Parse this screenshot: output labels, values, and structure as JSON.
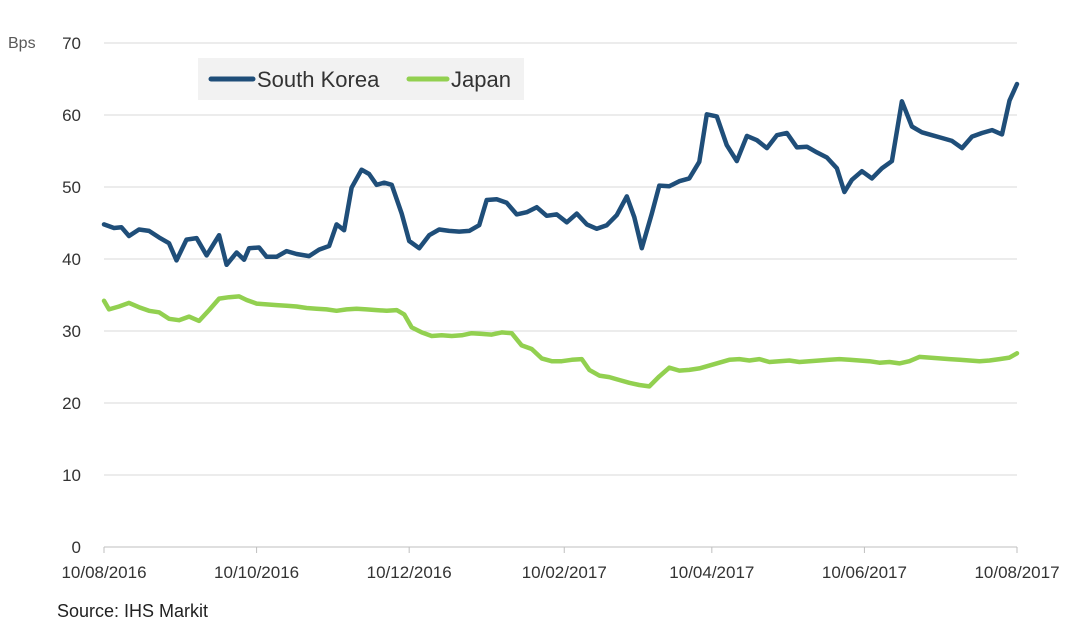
{
  "chart_data": {
    "type": "line",
    "ylabel": "Bps",
    "ylim": [
      0,
      70
    ],
    "yticks": [
      0,
      10,
      20,
      30,
      40,
      50,
      60,
      70
    ],
    "xlim": [
      "2016-08-10",
      "2017-08-10"
    ],
    "xticks": [
      "10/08/2016",
      "10/10/2016",
      "10/12/2016",
      "10/02/2017",
      "10/04/2017",
      "10/06/2017",
      "10/08/2017"
    ],
    "grid": "horizontal",
    "legend_position": "top-left",
    "series": [
      {
        "name": "South Korea",
        "color": "#1f4e79",
        "points": [
          [
            "2016-08-10",
            44.8
          ],
          [
            "2016-08-14",
            44.3
          ],
          [
            "2016-08-17",
            44.4
          ],
          [
            "2016-08-20",
            43.2
          ],
          [
            "2016-08-24",
            44.1
          ],
          [
            "2016-08-28",
            43.9
          ],
          [
            "2016-09-01",
            43.0
          ],
          [
            "2016-09-05",
            42.2
          ],
          [
            "2016-09-08",
            39.8
          ],
          [
            "2016-09-12",
            42.7
          ],
          [
            "2016-09-16",
            42.9
          ],
          [
            "2016-09-20",
            40.5
          ],
          [
            "2016-09-25",
            43.3
          ],
          [
            "2016-09-28",
            39.2
          ],
          [
            "2016-10-02",
            40.9
          ],
          [
            "2016-10-05",
            39.9
          ],
          [
            "2016-10-07",
            41.5
          ],
          [
            "2016-10-11",
            41.6
          ],
          [
            "2016-10-14",
            40.3
          ],
          [
            "2016-10-18",
            40.3
          ],
          [
            "2016-10-22",
            41.1
          ],
          [
            "2016-10-26",
            40.7
          ],
          [
            "2016-10-31",
            40.4
          ],
          [
            "2016-11-04",
            41.3
          ],
          [
            "2016-11-08",
            41.8
          ],
          [
            "2016-11-11",
            44.8
          ],
          [
            "2016-11-14",
            44.0
          ],
          [
            "2016-11-17",
            49.9
          ],
          [
            "2016-11-21",
            52.4
          ],
          [
            "2016-11-24",
            51.8
          ],
          [
            "2016-11-27",
            50.3
          ],
          [
            "2016-11-30",
            50.6
          ],
          [
            "2016-12-03",
            50.3
          ],
          [
            "2016-12-07",
            46.3
          ],
          [
            "2016-12-10",
            42.5
          ],
          [
            "2016-12-14",
            41.5
          ],
          [
            "2016-12-18",
            43.3
          ],
          [
            "2016-12-22",
            44.1
          ],
          [
            "2016-12-26",
            43.9
          ],
          [
            "2016-12-30",
            43.8
          ],
          [
            "2017-01-03",
            43.9
          ],
          [
            "2017-01-07",
            44.7
          ],
          [
            "2017-01-10",
            48.2
          ],
          [
            "2017-01-14",
            48.3
          ],
          [
            "2017-01-18",
            47.8
          ],
          [
            "2017-01-22",
            46.2
          ],
          [
            "2017-01-26",
            46.5
          ],
          [
            "2017-01-30",
            47.2
          ],
          [
            "2017-02-03",
            46.0
          ],
          [
            "2017-02-07",
            46.2
          ],
          [
            "2017-02-11",
            45.1
          ],
          [
            "2017-02-15",
            46.3
          ],
          [
            "2017-02-19",
            44.8
          ],
          [
            "2017-02-23",
            44.2
          ],
          [
            "2017-02-27",
            44.7
          ],
          [
            "2017-03-03",
            46.1
          ],
          [
            "2017-03-07",
            48.7
          ],
          [
            "2017-03-10",
            45.8
          ],
          [
            "2017-03-13",
            41.5
          ],
          [
            "2017-03-17",
            46.3
          ],
          [
            "2017-03-20",
            50.2
          ],
          [
            "2017-03-24",
            50.1
          ],
          [
            "2017-03-28",
            50.8
          ],
          [
            "2017-04-01",
            51.2
          ],
          [
            "2017-04-05",
            53.5
          ],
          [
            "2017-04-08",
            60.1
          ],
          [
            "2017-04-12",
            59.8
          ],
          [
            "2017-04-16",
            55.8
          ],
          [
            "2017-04-20",
            53.6
          ],
          [
            "2017-04-24",
            57.1
          ],
          [
            "2017-04-28",
            56.5
          ],
          [
            "2017-05-02",
            55.4
          ],
          [
            "2017-05-06",
            57.2
          ],
          [
            "2017-05-10",
            57.5
          ],
          [
            "2017-05-14",
            55.5
          ],
          [
            "2017-05-18",
            55.6
          ],
          [
            "2017-05-22",
            54.8
          ],
          [
            "2017-05-26",
            54.1
          ],
          [
            "2017-05-30",
            52.6
          ],
          [
            "2017-06-02",
            49.3
          ],
          [
            "2017-06-05",
            51.0
          ],
          [
            "2017-06-09",
            52.2
          ],
          [
            "2017-06-13",
            51.2
          ],
          [
            "2017-06-17",
            52.6
          ],
          [
            "2017-06-21",
            53.6
          ],
          [
            "2017-06-25",
            61.9
          ],
          [
            "2017-06-29",
            58.4
          ],
          [
            "2017-07-03",
            57.6
          ],
          [
            "2017-07-07",
            57.2
          ],
          [
            "2017-07-11",
            56.8
          ],
          [
            "2017-07-15",
            56.4
          ],
          [
            "2017-07-19",
            55.4
          ],
          [
            "2017-07-23",
            57.0
          ],
          [
            "2017-07-27",
            57.5
          ],
          [
            "2017-07-31",
            57.9
          ],
          [
            "2017-08-04",
            57.3
          ],
          [
            "2017-08-07",
            62.0
          ],
          [
            "2017-08-10",
            64.3
          ]
        ]
      },
      {
        "name": "Japan",
        "color": "#92d050",
        "points": [
          [
            "2016-08-10",
            34.2
          ],
          [
            "2016-08-12",
            33.0
          ],
          [
            "2016-08-16",
            33.4
          ],
          [
            "2016-08-20",
            33.9
          ],
          [
            "2016-08-24",
            33.3
          ],
          [
            "2016-08-28",
            32.8
          ],
          [
            "2016-09-01",
            32.6
          ],
          [
            "2016-09-05",
            31.7
          ],
          [
            "2016-09-09",
            31.5
          ],
          [
            "2016-09-13",
            32.0
          ],
          [
            "2016-09-17",
            31.4
          ],
          [
            "2016-09-21",
            32.9
          ],
          [
            "2016-09-25",
            34.5
          ],
          [
            "2016-09-29",
            34.7
          ],
          [
            "2016-10-03",
            34.8
          ],
          [
            "2016-10-06",
            34.3
          ],
          [
            "2016-10-10",
            33.8
          ],
          [
            "2016-10-14",
            33.7
          ],
          [
            "2016-10-18",
            33.6
          ],
          [
            "2016-10-22",
            33.5
          ],
          [
            "2016-10-26",
            33.4
          ],
          [
            "2016-10-30",
            33.2
          ],
          [
            "2016-11-03",
            33.1
          ],
          [
            "2016-11-07",
            33.0
          ],
          [
            "2016-11-11",
            32.8
          ],
          [
            "2016-11-15",
            33.0
          ],
          [
            "2016-11-19",
            33.1
          ],
          [
            "2016-11-23",
            33.0
          ],
          [
            "2016-11-27",
            32.9
          ],
          [
            "2016-12-01",
            32.8
          ],
          [
            "2016-12-05",
            32.9
          ],
          [
            "2016-12-08",
            32.3
          ],
          [
            "2016-12-11",
            30.5
          ],
          [
            "2016-12-15",
            29.8
          ],
          [
            "2016-12-19",
            29.3
          ],
          [
            "2016-12-23",
            29.4
          ],
          [
            "2016-12-27",
            29.3
          ],
          [
            "2016-12-31",
            29.4
          ],
          [
            "2017-01-04",
            29.7
          ],
          [
            "2017-01-08",
            29.6
          ],
          [
            "2017-01-12",
            29.5
          ],
          [
            "2017-01-16",
            29.8
          ],
          [
            "2017-01-20",
            29.7
          ],
          [
            "2017-01-24",
            28.0
          ],
          [
            "2017-01-28",
            27.5
          ],
          [
            "2017-02-01",
            26.2
          ],
          [
            "2017-02-05",
            25.8
          ],
          [
            "2017-02-09",
            25.8
          ],
          [
            "2017-02-13",
            26.0
          ],
          [
            "2017-02-17",
            26.1
          ],
          [
            "2017-02-20",
            24.6
          ],
          [
            "2017-02-24",
            23.8
          ],
          [
            "2017-02-28",
            23.6
          ],
          [
            "2017-03-04",
            23.2
          ],
          [
            "2017-03-08",
            22.8
          ],
          [
            "2017-03-12",
            22.5
          ],
          [
            "2017-03-16",
            22.3
          ],
          [
            "2017-03-20",
            23.7
          ],
          [
            "2017-03-24",
            24.9
          ],
          [
            "2017-03-28",
            24.5
          ],
          [
            "2017-04-01",
            24.6
          ],
          [
            "2017-04-05",
            24.8
          ],
          [
            "2017-04-09",
            25.2
          ],
          [
            "2017-04-13",
            25.6
          ],
          [
            "2017-04-17",
            26.0
          ],
          [
            "2017-04-21",
            26.1
          ],
          [
            "2017-04-25",
            25.9
          ],
          [
            "2017-04-29",
            26.1
          ],
          [
            "2017-05-03",
            25.7
          ],
          [
            "2017-05-07",
            25.8
          ],
          [
            "2017-05-11",
            25.9
          ],
          [
            "2017-05-15",
            25.7
          ],
          [
            "2017-05-19",
            25.8
          ],
          [
            "2017-05-23",
            25.9
          ],
          [
            "2017-05-27",
            26.0
          ],
          [
            "2017-05-31",
            26.1
          ],
          [
            "2017-06-04",
            26.0
          ],
          [
            "2017-06-08",
            25.9
          ],
          [
            "2017-06-12",
            25.8
          ],
          [
            "2017-06-16",
            25.6
          ],
          [
            "2017-06-20",
            25.7
          ],
          [
            "2017-06-24",
            25.5
          ],
          [
            "2017-06-28",
            25.8
          ],
          [
            "2017-07-02",
            26.4
          ],
          [
            "2017-07-06",
            26.3
          ],
          [
            "2017-07-10",
            26.2
          ],
          [
            "2017-07-14",
            26.1
          ],
          [
            "2017-07-18",
            26.0
          ],
          [
            "2017-07-22",
            25.9
          ],
          [
            "2017-07-26",
            25.8
          ],
          [
            "2017-07-30",
            25.9
          ],
          [
            "2017-08-03",
            26.1
          ],
          [
            "2017-08-07",
            26.3
          ],
          [
            "2017-08-10",
            26.9
          ]
        ]
      }
    ]
  },
  "source": "Source: IHS Markit"
}
